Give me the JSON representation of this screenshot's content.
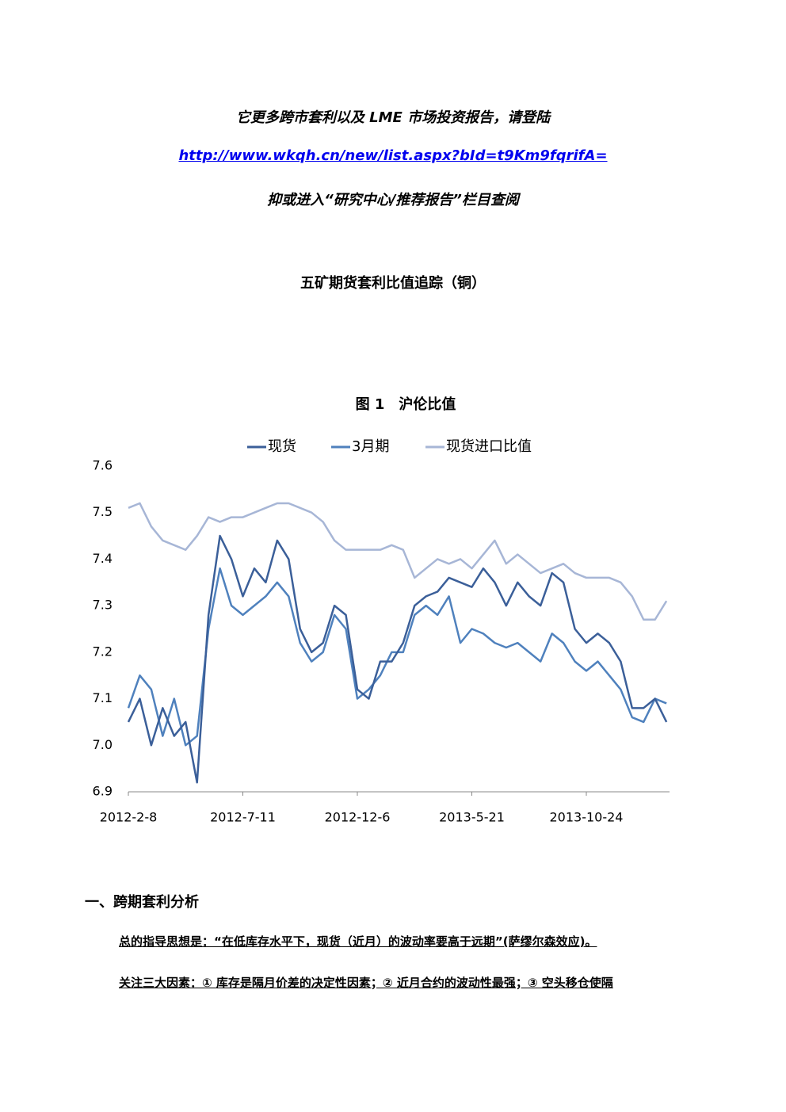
{
  "header": {
    "line1": "它更多跨市套利以及 LME 市场投资报告，请登陆",
    "link": "http://www.wkqh.cn/new/list.aspx?bId=t9Km9fqrifA=",
    "line3": "抑或进入“研究中心/推荐报告”栏目查阅"
  },
  "title": "五矿期货套利比值追踪（铜）",
  "chart_data": {
    "type": "line",
    "title": "图 1　沪伦比值",
    "categories": [
      "2012-2-8",
      null,
      null,
      null,
      null,
      null,
      null,
      null,
      null,
      null,
      "2012-7-11",
      null,
      null,
      null,
      null,
      null,
      null,
      null,
      null,
      null,
      "2012-12-6",
      null,
      null,
      null,
      null,
      null,
      null,
      null,
      null,
      null,
      "2013-5-21",
      null,
      null,
      null,
      null,
      null,
      null,
      null,
      null,
      null,
      "2013-10-24",
      null,
      null,
      null,
      null,
      null,
      null,
      null
    ],
    "series": [
      {
        "name": "现货",
        "color": "#3b5f99",
        "values": [
          7.05,
          7.1,
          7.0,
          7.08,
          7.02,
          7.05,
          6.92,
          7.28,
          7.45,
          7.4,
          7.32,
          7.38,
          7.35,
          7.44,
          7.4,
          7.25,
          7.2,
          7.22,
          7.3,
          7.28,
          7.12,
          7.1,
          7.18,
          7.18,
          7.22,
          7.3,
          7.32,
          7.33,
          7.36,
          7.35,
          7.34,
          7.38,
          7.35,
          7.3,
          7.35,
          7.32,
          7.3,
          7.37,
          7.35,
          7.25,
          7.22,
          7.24,
          7.22,
          7.18,
          7.08,
          7.08,
          7.1,
          7.05
        ]
      },
      {
        "name": "3月期",
        "color": "#4f81bd",
        "values": [
          7.08,
          7.15,
          7.12,
          7.02,
          7.1,
          7.0,
          7.02,
          7.25,
          7.38,
          7.3,
          7.28,
          7.3,
          7.32,
          7.35,
          7.32,
          7.22,
          7.18,
          7.2,
          7.28,
          7.25,
          7.1,
          7.12,
          7.15,
          7.2,
          7.2,
          7.28,
          7.3,
          7.28,
          7.32,
          7.22,
          7.25,
          7.24,
          7.22,
          7.21,
          7.22,
          7.2,
          7.18,
          7.24,
          7.22,
          7.18,
          7.16,
          7.18,
          7.15,
          7.12,
          7.06,
          7.05,
          7.1,
          7.09
        ]
      },
      {
        "name": "现货进口比值",
        "color": "#a7b6d6",
        "values": [
          7.51,
          7.52,
          7.47,
          7.44,
          7.43,
          7.42,
          7.45,
          7.49,
          7.48,
          7.49,
          7.49,
          7.5,
          7.51,
          7.52,
          7.52,
          7.51,
          7.5,
          7.48,
          7.44,
          7.42,
          7.42,
          7.42,
          7.42,
          7.43,
          7.42,
          7.36,
          7.38,
          7.4,
          7.39,
          7.4,
          7.38,
          7.41,
          7.44,
          7.39,
          7.41,
          7.39,
          7.37,
          7.38,
          7.39,
          7.37,
          7.36,
          7.36,
          7.36,
          7.35,
          7.32,
          7.27,
          7.27,
          7.31
        ]
      }
    ],
    "ylim": [
      6.9,
      7.6
    ],
    "yticks": [
      6.9,
      7.1,
      {
        "value": 7,
        "label": "7.0"
      },
      7.2,
      7.3,
      7.4,
      7.5,
      7.6
    ],
    "legend": "top"
  },
  "section": {
    "heading": "一、跨期套利分析",
    "paragraphs": [
      "总的指导思想是：“在低库存水平下，现货（近月）的波动率要高于远期”(萨缪尔森效应)。",
      "关注三大因素：① 库存是隔月价差的决定性因素；② 近月合约的波动性最强；③ 空头移仓使隔"
    ]
  }
}
